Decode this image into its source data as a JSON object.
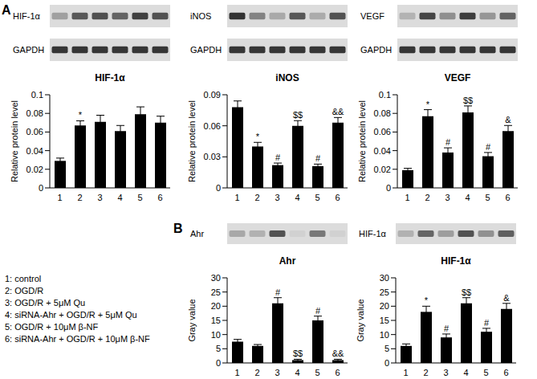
{
  "panel_labels": [
    "A",
    "B"
  ],
  "legend_items": [
    "1: control",
    "2: OGD/R",
    "3: OGD/R + 5μM Qu",
    "4: siRNA-Ahr + OGD/R + 5μM Qu",
    "5: OGD/R + 10μM β-NF",
    "6: siRNA-Ahr + OGD/R + 10μM β-NF"
  ],
  "chart_data": [
    {
      "type": "bar",
      "panel": "A",
      "title": "HIF-1α",
      "blots": [
        "HIF-1α",
        "GAPDH"
      ],
      "ylabel": "Relative protein level",
      "categories": [
        "1",
        "2",
        "3",
        "4",
        "5",
        "6"
      ],
      "values": [
        0.029,
        0.067,
        0.071,
        0.061,
        0.079,
        0.07
      ],
      "errors": [
        0.003,
        0.005,
        0.007,
        0.006,
        0.008,
        0.007
      ],
      "annotations": [
        null,
        "*",
        null,
        null,
        null,
        null
      ],
      "color": "#000000",
      "ylim": [
        0,
        0.1
      ],
      "yticks": [
        0,
        0.02,
        0.04,
        0.06,
        0.08,
        0.1
      ]
    },
    {
      "type": "bar",
      "panel": "A",
      "title": "iNOS",
      "blots": [
        "iNOS",
        "GAPDH"
      ],
      "ylabel": "Relative protein level",
      "categories": [
        "1",
        "2",
        "3",
        "4",
        "5",
        "6"
      ],
      "values": [
        0.078,
        0.04,
        0.022,
        0.06,
        0.021,
        0.063
      ],
      "errors": [
        0.006,
        0.004,
        0.002,
        0.005,
        0.002,
        0.005
      ],
      "annotations": [
        null,
        "*",
        "#",
        "$$",
        "#",
        "&&"
      ],
      "color": "#000000",
      "ylim": [
        0,
        0.09
      ],
      "yticks": [
        0,
        0.03,
        0.06,
        0.09
      ]
    },
    {
      "type": "bar",
      "panel": "A",
      "title": "VEGF",
      "blots": [
        "VEGF",
        "GAPDH"
      ],
      "ylabel": "Relative protein level",
      "categories": [
        "1",
        "2",
        "3",
        "4",
        "5",
        "6"
      ],
      "values": [
        0.019,
        0.077,
        0.038,
        0.081,
        0.034,
        0.061
      ],
      "errors": [
        0.002,
        0.007,
        0.005,
        0.007,
        0.004,
        0.006
      ],
      "annotations": [
        null,
        "*",
        "#",
        "$$",
        "#",
        "&"
      ],
      "color": "#000000",
      "ylim": [
        0,
        0.1
      ],
      "yticks": [
        0,
        0.02,
        0.04,
        0.06,
        0.08,
        0.1
      ]
    },
    {
      "type": "bar",
      "panel": "B",
      "title": "Ahr",
      "blots": [
        "Ahr"
      ],
      "ylabel": "Gray value",
      "categories": [
        "1",
        "2",
        "3",
        "4",
        "5",
        "6"
      ],
      "values": [
        7.5,
        6,
        21,
        1,
        15,
        1
      ],
      "errors": [
        0.8,
        0.5,
        2,
        0.3,
        1.5,
        0.3
      ],
      "annotations": [
        null,
        null,
        "#",
        "$$",
        "#",
        "&&"
      ],
      "color": "#000000",
      "ylim": [
        0,
        30
      ],
      "yticks": [
        0,
        5,
        10,
        15,
        20,
        25,
        30
      ]
    },
    {
      "type": "bar",
      "panel": "B",
      "title": "HIF-1α",
      "blots": [
        "HIF-1α"
      ],
      "ylabel": "Gray value",
      "categories": [
        "1",
        "2",
        "3",
        "4",
        "5",
        "6"
      ],
      "values": [
        6,
        18,
        9,
        21,
        11,
        19
      ],
      "errors": [
        0.7,
        2,
        1.2,
        2,
        1.2,
        2
      ],
      "annotations": [
        null,
        "*",
        "#",
        "$$",
        "#",
        "&"
      ],
      "color": "#000000",
      "ylim": [
        0,
        30
      ],
      "yticks": [
        0,
        5,
        10,
        15,
        20,
        25,
        30
      ]
    }
  ]
}
